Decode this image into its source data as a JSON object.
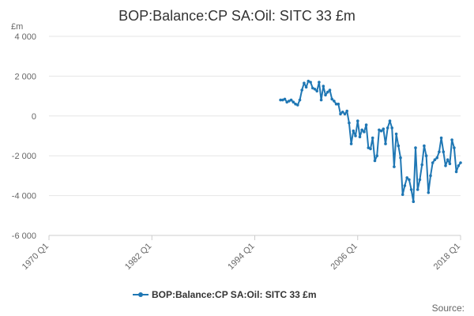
{
  "chart_data": {
    "type": "line",
    "title": "BOP:Balance:CP SA:Oil: SITC 33 £m",
    "unit_label": "£m",
    "ylim": [
      -6000,
      4000
    ],
    "y_ticks": [
      4000,
      2000,
      0,
      -2000,
      -4000,
      -6000
    ],
    "y_tick_labels": [
      "4 000",
      "2 000",
      "0",
      "-2 000",
      "-4 000",
      "-6 000"
    ],
    "xlim": [
      "1970 Q1",
      "2018 Q1"
    ],
    "x_tick_labels": [
      "1970 Q1",
      "1982 Q1",
      "1994 Q1",
      "2006 Q1",
      "2018 Q1"
    ],
    "grid": true,
    "legend_position": "bottom",
    "series": [
      {
        "name": "BOP:Balance:CP SA:Oil: SITC 33 £m",
        "color": "#1f77b4",
        "x": [
          "1997 Q1",
          "1997 Q2",
          "1997 Q3",
          "1997 Q4",
          "1998 Q1",
          "1998 Q2",
          "1998 Q3",
          "1998 Q4",
          "1999 Q1",
          "1999 Q2",
          "1999 Q3",
          "1999 Q4",
          "2000 Q1",
          "2000 Q2",
          "2000 Q3",
          "2000 Q4",
          "2001 Q1",
          "2001 Q2",
          "2001 Q3",
          "2001 Q4",
          "2002 Q1",
          "2002 Q2",
          "2002 Q3",
          "2002 Q4",
          "2003 Q1",
          "2003 Q2",
          "2003 Q3",
          "2003 Q4",
          "2004 Q1",
          "2004 Q2",
          "2004 Q3",
          "2004 Q4",
          "2005 Q1",
          "2005 Q2",
          "2005 Q3",
          "2005 Q4",
          "2006 Q1",
          "2006 Q2",
          "2006 Q3",
          "2006 Q4",
          "2007 Q1",
          "2007 Q2",
          "2007 Q3",
          "2007 Q4",
          "2008 Q1",
          "2008 Q2",
          "2008 Q3",
          "2008 Q4",
          "2009 Q1",
          "2009 Q2",
          "2009 Q3",
          "2009 Q4",
          "2010 Q1",
          "2010 Q2",
          "2010 Q3",
          "2010 Q4",
          "2011 Q1",
          "2011 Q2",
          "2011 Q3",
          "2011 Q4",
          "2012 Q1",
          "2012 Q2",
          "2012 Q3",
          "2012 Q4",
          "2013 Q1",
          "2013 Q2",
          "2013 Q3",
          "2013 Q4",
          "2014 Q1",
          "2014 Q2",
          "2014 Q3",
          "2014 Q4",
          "2015 Q1",
          "2015 Q2",
          "2015 Q3",
          "2015 Q4",
          "2016 Q1",
          "2016 Q2",
          "2016 Q3",
          "2016 Q4",
          "2017 Q1",
          "2017 Q2",
          "2017 Q3",
          "2017 Q4",
          "2018 Q1"
        ],
        "values": [
          800,
          800,
          850,
          700,
          750,
          800,
          700,
          600,
          550,
          800,
          1300,
          1650,
          1450,
          1750,
          1700,
          1400,
          1350,
          1250,
          1700,
          800,
          1500,
          1050,
          1200,
          1300,
          850,
          750,
          600,
          600,
          100,
          200,
          100,
          250,
          -350,
          -1400,
          -750,
          -1000,
          -250,
          -1050,
          -700,
          -800,
          -450,
          -1600,
          -1650,
          -1100,
          -2250,
          -2000,
          -700,
          -750,
          -650,
          -1400,
          -600,
          -250,
          -600,
          -2550,
          -900,
          -1500,
          -2100,
          -3950,
          -3500,
          -3100,
          -3200,
          -3700,
          -4300,
          -1600,
          -3700,
          -3200,
          -2450,
          -1500,
          -2000,
          -3850,
          -3000,
          -2350,
          -2200,
          -2100,
          -1800,
          -1100,
          -1800,
          -2500,
          -2200,
          -2400,
          -1200,
          -1600,
          -2800,
          -2500,
          -2350
        ]
      }
    ]
  },
  "legend": {
    "label": "BOP:Balance:CP SA:Oil: SITC 33 £m"
  },
  "footer": {
    "source_label": "Source:"
  }
}
